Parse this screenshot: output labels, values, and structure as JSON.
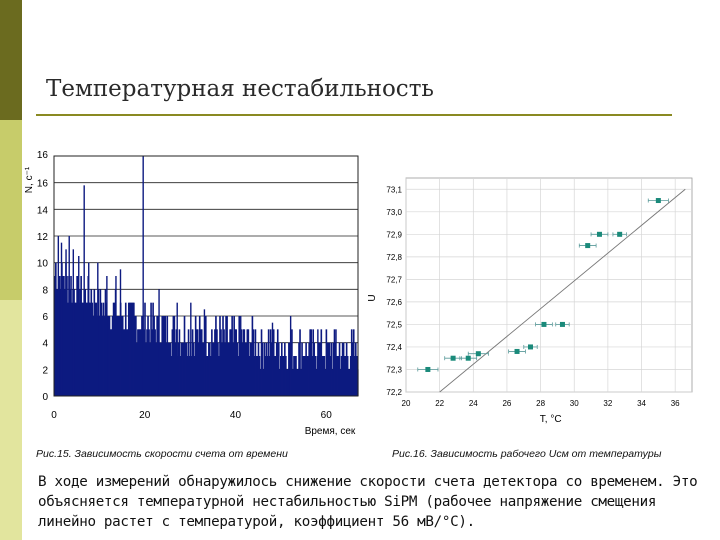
{
  "slide": {
    "title": "Температурная нестабильность",
    "caption_left": "Рис.15. Зависимость скорости счета от времени",
    "caption_right": "Рис.16. Зависимость рабочего Uсм от температуры",
    "body_text": "В ходе измерений обнаружилось снижение скорости счета детектора со временем. Это объясняется температурной нестабильностью SiPM (рабочее напряжение смещения линейно растет с температурой, коэффициент 56 мВ/°С).",
    "colors": {
      "sidebar_dark": "#6b6b1f",
      "sidebar_mid": "#c7cc6a",
      "sidebar_light": "#e2e59e",
      "title_rule": "#8a8a22",
      "bars": "#0d1a80",
      "points": "#1a8a7a"
    }
  },
  "chart_data": [
    {
      "type": "bar",
      "xlabel": "Время, сек",
      "ylabel": "N, c⁻¹",
      "xlim": [
        0,
        67
      ],
      "ylim": [
        0,
        18
      ],
      "xticks": [
        0,
        20,
        40,
        60
      ],
      "yticks": [
        0,
        2,
        4,
        6,
        8,
        10,
        12,
        14,
        16
      ],
      "top_tick_label": "16",
      "grid": "horizontal",
      "series": [
        {
          "bins_from": 0,
          "bins_to": 67,
          "bin_count": 300,
          "approx_level": [
            [
              0,
              9.5
            ],
            [
              5,
              8
            ],
            [
              10,
              7
            ],
            [
              15,
              6
            ],
            [
              25,
              5
            ],
            [
              35,
              4.5
            ],
            [
              45,
              4
            ],
            [
              55,
              3.5
            ],
            [
              67,
              3.2
            ]
          ],
          "spikes": [
            [
              0.8,
              12
            ],
            [
              1.5,
              11.5
            ],
            [
              2.5,
              11
            ],
            [
              3.2,
              12
            ],
            [
              4.1,
              11
            ],
            [
              5.3,
              10.5
            ],
            [
              6.5,
              15.8
            ],
            [
              7.5,
              10
            ],
            [
              9.5,
              10
            ],
            [
              11.5,
              9
            ],
            [
              13.5,
              9
            ],
            [
              14.5,
              9.5
            ],
            [
              19.5,
              18
            ],
            [
              23,
              8
            ],
            [
              27,
              7
            ],
            [
              30,
              7
            ],
            [
              33,
              6.5
            ],
            [
              41,
              6
            ],
            [
              48,
              5.5
            ],
            [
              52,
              6
            ],
            [
              58,
              5
            ],
            [
              62,
              5
            ]
          ]
        }
      ]
    },
    {
      "type": "scatter",
      "xlabel": "T, °C",
      "ylabel": "U",
      "xlim": [
        20,
        37
      ],
      "ylim": [
        72.2,
        73.15
      ],
      "xticks": [
        20,
        22,
        24,
        26,
        28,
        30,
        32,
        34,
        36
      ],
      "yticks": [
        "72,2",
        "72,3",
        "72,4",
        "72,5",
        "72,6",
        "72,7",
        "72,8",
        "72,9",
        "73,0",
        "73,1"
      ],
      "grid": true,
      "points": [
        {
          "x": 21.3,
          "y": 72.3,
          "xerr": 0.6
        },
        {
          "x": 22.8,
          "y": 72.35,
          "xerr": 0.5
        },
        {
          "x": 23.7,
          "y": 72.35,
          "xerr": 0.5
        },
        {
          "x": 24.3,
          "y": 72.37,
          "xerr": 0.6
        },
        {
          "x": 26.6,
          "y": 72.38,
          "xerr": 0.5
        },
        {
          "x": 27.4,
          "y": 72.4,
          "xerr": 0.4
        },
        {
          "x": 28.2,
          "y": 72.5,
          "xerr": 0.5
        },
        {
          "x": 29.3,
          "y": 72.5,
          "xerr": 0.4
        },
        {
          "x": 30.8,
          "y": 72.85,
          "xerr": 0.5
        },
        {
          "x": 31.5,
          "y": 72.9,
          "xerr": 0.5
        },
        {
          "x": 32.7,
          "y": 72.9,
          "xerr": 0.4
        },
        {
          "x": 35.0,
          "y": 73.05,
          "xerr": 0.6
        }
      ],
      "fit_line": {
        "x0": 22,
        "y0": 72.2,
        "x1": 36.6,
        "y1": 73.1
      }
    }
  ]
}
